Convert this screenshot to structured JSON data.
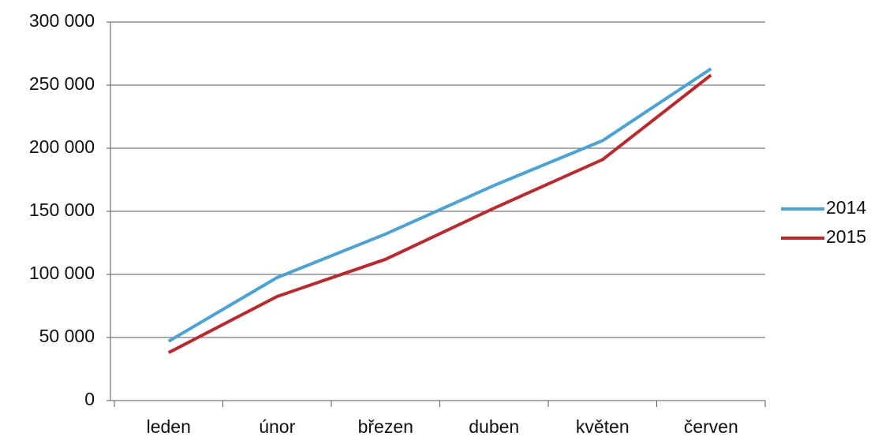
{
  "chart_data": {
    "type": "line",
    "categories": [
      "leden",
      "únor",
      "březen",
      "duben",
      "květen",
      "červen"
    ],
    "series": [
      {
        "name": "2014",
        "color": "#4aa3d6",
        "values": [
          47000,
          97500,
          132000,
          170500,
          206000,
          263000
        ]
      },
      {
        "name": "2015",
        "color": "#c0272d",
        "values": [
          38000,
          82500,
          112000,
          152500,
          191000,
          258000
        ]
      }
    ],
    "ylim": [
      0,
      300000
    ],
    "yticks": [
      0,
      {
        "value": 50000,
        "label": "50 000"
      },
      {
        "value": 100000,
        "label": "100 000"
      },
      {
        "value": 150000,
        "label": "150 000"
      },
      {
        "value": 200000,
        "label": "200 000"
      },
      {
        "value": 250000,
        "label": "250 000"
      },
      {
        "value": 300000,
        "label": "300 000"
      }
    ],
    "grid": true,
    "legend": "right"
  }
}
